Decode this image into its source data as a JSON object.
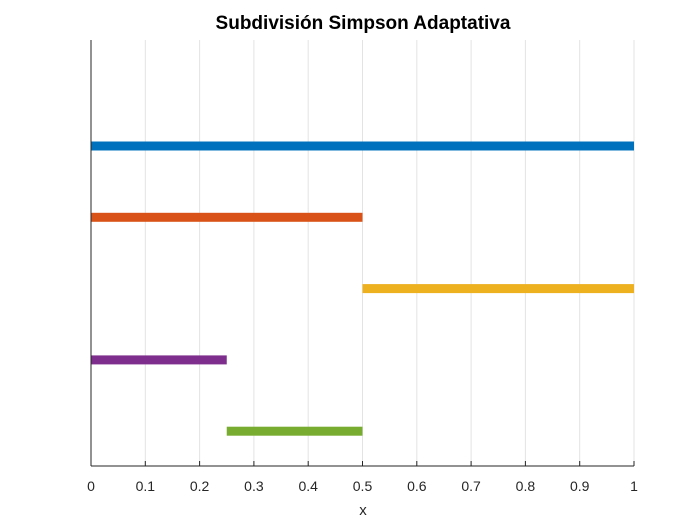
{
  "chart_data": {
    "type": "bar",
    "orientation": "horizontal-intervals",
    "title": "Subdivisión Simpson Adaptativa",
    "xlabel": "x",
    "ylabel": "",
    "xlim": [
      0,
      1
    ],
    "xticks": [
      "0",
      "0.1",
      "0.2",
      "0.3",
      "0.4",
      "0.5",
      "0.6",
      "0.7",
      "0.8",
      "0.9",
      "1"
    ],
    "grid": "vertical",
    "y_axis_ticks_visible": false,
    "segments": [
      {
        "level": 1,
        "x_start": 0,
        "x_end": 1,
        "color": "#0072BD"
      },
      {
        "level": 2,
        "x_start": 0,
        "x_end": 0.5,
        "color": "#D95319"
      },
      {
        "level": 3,
        "x_start": 0.5,
        "x_end": 1,
        "color": "#EDB120"
      },
      {
        "level": 4,
        "x_start": 0,
        "x_end": 0.25,
        "color": "#7E2F8E"
      },
      {
        "level": 5,
        "x_start": 0.25,
        "x_end": 0.5,
        "color": "#77AC30"
      }
    ]
  }
}
